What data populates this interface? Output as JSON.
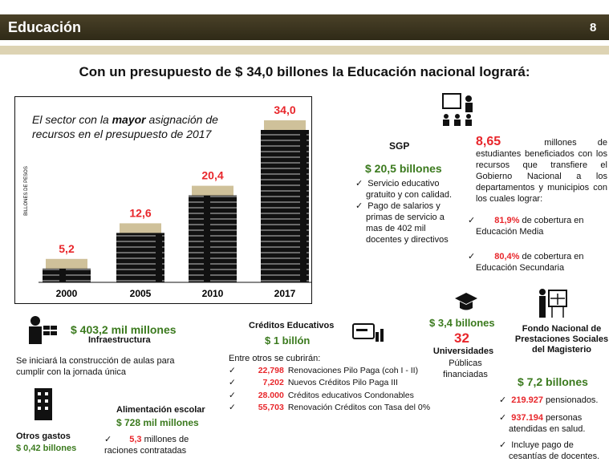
{
  "header": {
    "title": "Educación",
    "page": "8"
  },
  "headline": {
    "parts": [
      "Con un presupuesto de",
      "$ 34,0",
      "billones",
      "la Educación nacional logrará:"
    ]
  },
  "chart_data": {
    "type": "bar",
    "title_parts": [
      "El sector con la",
      "mayor",
      "asignación de recursos en el presupuesto de 2017"
    ],
    "ylabel": "BILLONES DE PESOS",
    "categories": [
      "2000",
      "2005",
      "2010",
      "2017"
    ],
    "values": [
      5.2,
      12.6,
      20.4,
      34.0
    ],
    "value_labels": [
      "5,2",
      "12,6",
      "20,4",
      "34,0"
    ],
    "color": "#111111",
    "label_color": "#e8262b"
  },
  "sgp": {
    "title": "SGP",
    "amount": "$ 20,5 billones",
    "items": [
      "Servicio educativo gratuito y con calidad.",
      "Pago de salarios y primas de servicio a mas de 402 mil docentes y directivos"
    ]
  },
  "students": {
    "number": "8,65",
    "text": "millones de estudiantes beneficiados con los recursos que transfiere el Gobierno Nacional a los departamentos y municipios con los cuales lograr:",
    "items": [
      {
        "value": "81,9%",
        "text": "de cobertura en Educación Media"
      },
      {
        "value": "80,4%",
        "text": "de cobertura en Educación Secundaria"
      }
    ]
  },
  "infra": {
    "amount": "$ 403,2 mil millones",
    "title": "Infraestructura",
    "text": "Se iniciará la construcción de aulas para cumplir con la jornada única"
  },
  "other": {
    "title": "Otros gastos",
    "amount": "$ 0,42 billones"
  },
  "food": {
    "title": "Alimentación escolar",
    "amount": "$ 728 mil millones",
    "value": "5,3",
    "text": "millones de raciones contratadas"
  },
  "credits": {
    "title": "Créditos Educativos",
    "amount": "$ 1 billón",
    "intro": "Entre otros se cubrirán:",
    "items": [
      {
        "value": "22,798",
        "text": "Renovaciones Pilo Paga (coh I - II)"
      },
      {
        "value": "7,202",
        "text": "Nuevos Créditos Pilo Paga III"
      },
      {
        "value": "28.000",
        "text": "Créditos educativos Condonables"
      },
      {
        "value": "55,703",
        "text": "Renovación Créditos con Tasa del 0%"
      }
    ]
  },
  "universities": {
    "amount": "$ 3,4 billones",
    "number": "32",
    "title": "Universidades",
    "text": "Públicas financiadas"
  },
  "fomag": {
    "title": "Fondo Nacional de Prestaciones Sociales del Magisterio",
    "amount": "$ 7,2 billones",
    "items": [
      {
        "value": "219.927",
        "text": "pensionados."
      },
      {
        "value": "937.194",
        "text": "personas atendidas en salud."
      },
      {
        "value": null,
        "text": "Incluye pago de cesantías de docentes."
      }
    ]
  }
}
